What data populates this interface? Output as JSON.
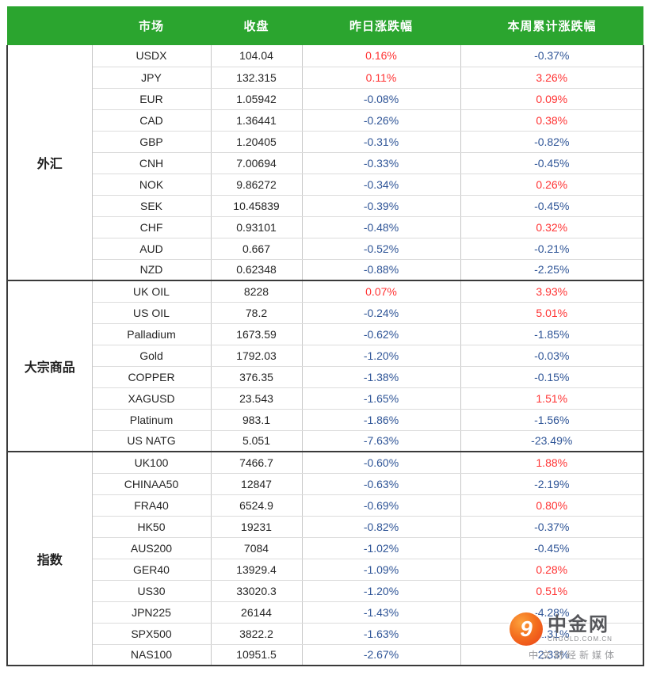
{
  "colors": {
    "header_bg": "#2BA52F",
    "header_fg": "#FFFFFF",
    "positive": "#FF3333",
    "negative": "#2F5597",
    "heavy_border": "#3A3A3A"
  },
  "chart_data": {
    "type": "table",
    "columns": [
      "市场",
      "收盘",
      "昨日涨跌幅",
      "本周累计涨跌幅"
    ],
    "groups": [
      {
        "label": "外汇",
        "rows": [
          {
            "market": "USDX",
            "close": "104.04",
            "day_change": "0.16%",
            "week_change": "-0.37%"
          },
          {
            "market": "JPY",
            "close": "132.315",
            "day_change": "0.11%",
            "week_change": "3.26%"
          },
          {
            "market": "EUR",
            "close": "1.05942",
            "day_change": "-0.08%",
            "week_change": "0.09%"
          },
          {
            "market": "CAD",
            "close": "1.36441",
            "day_change": "-0.26%",
            "week_change": "0.38%"
          },
          {
            "market": "GBP",
            "close": "1.20405",
            "day_change": "-0.31%",
            "week_change": "-0.82%"
          },
          {
            "market": "CNH",
            "close": "7.00694",
            "day_change": "-0.33%",
            "week_change": "-0.45%"
          },
          {
            "market": "NOK",
            "close": "9.86272",
            "day_change": "-0.34%",
            "week_change": "0.26%"
          },
          {
            "market": "SEK",
            "close": "10.45839",
            "day_change": "-0.39%",
            "week_change": "-0.45%"
          },
          {
            "market": "CHF",
            "close": "0.93101",
            "day_change": "-0.48%",
            "week_change": "0.32%"
          },
          {
            "market": "AUD",
            "close": "0.667",
            "day_change": "-0.52%",
            "week_change": "-0.21%"
          },
          {
            "market": "NZD",
            "close": "0.62348",
            "day_change": "-0.88%",
            "week_change": "-2.25%"
          }
        ]
      },
      {
        "label": "大宗商品",
        "rows": [
          {
            "market": "UK OIL",
            "close": "8228",
            "day_change": "0.07%",
            "week_change": "3.93%"
          },
          {
            "market": "US OIL",
            "close": "78.2",
            "day_change": "-0.24%",
            "week_change": "5.01%"
          },
          {
            "market": "Palladium",
            "close": "1673.59",
            "day_change": "-0.62%",
            "week_change": "-1.85%"
          },
          {
            "market": "Gold",
            "close": "1792.03",
            "day_change": "-1.20%",
            "week_change": "-0.03%"
          },
          {
            "market": "COPPER",
            "close": "376.35",
            "day_change": "-1.38%",
            "week_change": "-0.15%"
          },
          {
            "market": "XAGUSD",
            "close": "23.543",
            "day_change": "-1.65%",
            "week_change": "1.51%"
          },
          {
            "market": "Platinum",
            "close": "983.1",
            "day_change": "-1.86%",
            "week_change": "-1.56%"
          },
          {
            "market": "US NATG",
            "close": "5.051",
            "day_change": "-7.63%",
            "week_change": "-23.49%"
          }
        ]
      },
      {
        "label": "指数",
        "rows": [
          {
            "market": "UK100",
            "close": "7466.7",
            "day_change": "-0.60%",
            "week_change": "1.88%"
          },
          {
            "market": "CHINAA50",
            "close": "12847",
            "day_change": "-0.63%",
            "week_change": "-2.19%"
          },
          {
            "market": "FRA40",
            "close": "6524.9",
            "day_change": "-0.69%",
            "week_change": "0.80%"
          },
          {
            "market": "HK50",
            "close": "19231",
            "day_change": "-0.82%",
            "week_change": "-0.37%"
          },
          {
            "market": "AUS200",
            "close": "7084",
            "day_change": "-1.02%",
            "week_change": "-0.45%"
          },
          {
            "market": "GER40",
            "close": "13929.4",
            "day_change": "-1.09%",
            "week_change": "0.28%"
          },
          {
            "market": "US30",
            "close": "33020.3",
            "day_change": "-1.20%",
            "week_change": "0.51%"
          },
          {
            "market": "JPN225",
            "close": "26144",
            "day_change": "-1.43%",
            "week_change": "-4.28%"
          },
          {
            "market": "SPX500",
            "close": "3822.2",
            "day_change": "-1.63%",
            "week_change": "-1.31%"
          },
          {
            "market": "NAS100",
            "close": "10951.5",
            "day_change": "-2.67%",
            "week_change": "-2.33%"
          }
        ]
      }
    ]
  },
  "watermark": {
    "logo_glyph": "9",
    "title": "中金网",
    "domain": "CNGOLD.COM.CN",
    "subtitle": "中文财经新媒体"
  }
}
